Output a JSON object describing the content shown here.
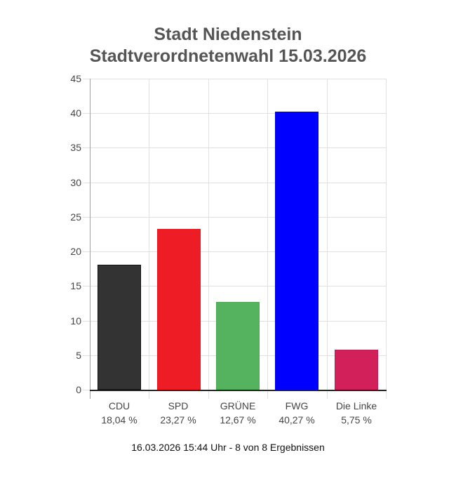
{
  "chart_data": {
    "type": "bar",
    "title": "Stadt Niedenstein",
    "subtitle": "Stadtverordnetenwahl 15.03.2026",
    "categories": [
      "CDU",
      "SPD",
      "GRÜNE",
      "FWG",
      "Die Linke"
    ],
    "values": [
      18.04,
      23.27,
      12.67,
      40.27,
      5.75
    ],
    "value_labels": [
      "18,04 %",
      "23,27 %",
      "12,67 %",
      "40,27 %",
      "5,75 %"
    ],
    "colors": [
      "#333333",
      "#ee1c25",
      "#55b25e",
      "#0000ff",
      "#d2205a"
    ],
    "border_colors": [
      "#111111",
      "#e8161e",
      "#4aa853",
      "#0000e0",
      "#c81850"
    ],
    "xlabel": "",
    "ylabel": "",
    "ylim": [
      0,
      45
    ],
    "yticks": [
      0,
      5,
      10,
      15,
      20,
      25,
      30,
      35,
      40,
      45
    ],
    "grid": true,
    "legend": "none",
    "footer": "16.03.2026 15:44 Uhr - 8 von 8 Ergebnissen"
  },
  "header": {
    "line1": "Stadt Niedenstein",
    "line2": "Stadtverordnetenwahl 15.03.2026"
  },
  "footer": {
    "status": "16.03.2026 15:44 Uhr - 8 von 8 Ergebnissen"
  }
}
